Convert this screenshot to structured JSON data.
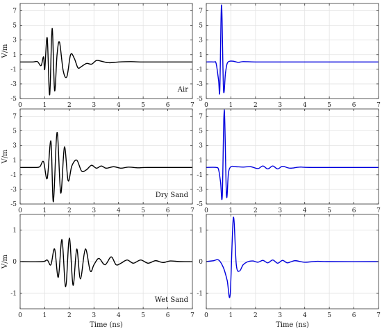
{
  "chart_data": [
    {
      "type": "line",
      "panel": "top-left",
      "label": "Air",
      "ylabel": "V/m",
      "xlabel": "",
      "xlim": [
        0,
        7
      ],
      "ylim": [
        -5,
        8
      ],
      "xticks": [
        0,
        1,
        2,
        3,
        4,
        5,
        6,
        7
      ],
      "yticks": [
        -5,
        -3,
        -1,
        1,
        3,
        5,
        7
      ],
      "grid": true,
      "color": "#000000",
      "series": [
        {
          "x": [
            0,
            0.5,
            0.7,
            0.85,
            0.95,
            1.0,
            1.1,
            1.2,
            1.3,
            1.4,
            1.5,
            1.6,
            1.75,
            1.9,
            2.05,
            2.2,
            2.35,
            2.5,
            2.7,
            2.9,
            3.1,
            3.3,
            3.6,
            4.0,
            4.5,
            5.0,
            7.0
          ],
          "y": [
            0,
            0,
            0.05,
            -0.5,
            0.7,
            -1.0,
            3.3,
            -4.5,
            4.6,
            -3.9,
            1.0,
            2.7,
            -1.2,
            -2.0,
            1.0,
            0.5,
            -0.8,
            -0.6,
            -0.2,
            -0.3,
            0.2,
            0.1,
            -0.1,
            0.0,
            0.05,
            0,
            0
          ]
        }
      ]
    },
    {
      "type": "line",
      "panel": "top-right",
      "label": "",
      "ylabel": "",
      "xlabel": "",
      "xlim": [
        0,
        7
      ],
      "ylim": [
        -5,
        8
      ],
      "xticks": [
        0,
        1,
        2,
        3,
        4,
        5,
        6,
        7
      ],
      "yticks": [
        -5,
        -3,
        -1,
        1,
        3,
        5,
        7
      ],
      "grid": true,
      "color": "#0000dd",
      "series": [
        {
          "x": [
            0,
            0.3,
            0.4,
            0.5,
            0.55,
            0.62,
            0.7,
            0.78,
            0.85,
            0.95,
            1.1,
            1.3,
            1.5,
            2.0,
            3.0,
            7.0
          ],
          "y": [
            0,
            0,
            -0.2,
            -2.5,
            -3.8,
            7.8,
            -3.8,
            -1.5,
            -0.2,
            0.1,
            0.1,
            -0.05,
            0.05,
            0,
            0,
            0
          ]
        }
      ]
    },
    {
      "type": "line",
      "panel": "middle-left",
      "label": "Dry Sand",
      "ylabel": "V/m",
      "xlabel": "",
      "xlim": [
        0,
        7
      ],
      "ylim": [
        -5,
        8
      ],
      "xticks": [
        0,
        1,
        2,
        3,
        4,
        5,
        6,
        7
      ],
      "yticks": [
        -5,
        -3,
        -1,
        1,
        3,
        5,
        7
      ],
      "grid": true,
      "color": "#000000",
      "series": [
        {
          "x": [
            0,
            0.6,
            0.8,
            0.95,
            1.1,
            1.25,
            1.35,
            1.5,
            1.65,
            1.8,
            1.95,
            2.1,
            2.3,
            2.5,
            2.7,
            2.9,
            3.1,
            3.3,
            3.5,
            3.8,
            4.1,
            4.4,
            4.8,
            5.2,
            7.0
          ],
          "y": [
            0,
            0,
            0.1,
            0.8,
            -1.5,
            3.6,
            -4.7,
            4.8,
            -3.5,
            2.8,
            -1.8,
            0.2,
            1.0,
            -0.5,
            -0.3,
            0.3,
            -0.1,
            0.2,
            -0.1,
            0.1,
            -0.1,
            0.05,
            -0.05,
            0,
            0
          ]
        }
      ]
    },
    {
      "type": "line",
      "panel": "middle-right",
      "label": "",
      "ylabel": "",
      "xlabel": "",
      "xlim": [
        0,
        7
      ],
      "ylim": [
        -5,
        8
      ],
      "xticks": [
        0,
        1,
        2,
        3,
        4,
        5,
        6,
        7
      ],
      "yticks": [
        -5,
        -3,
        -1,
        1,
        3,
        5,
        7
      ],
      "grid": true,
      "color": "#0000dd",
      "series": [
        {
          "x": [
            0,
            0.4,
            0.5,
            0.58,
            0.65,
            0.73,
            0.82,
            0.9,
            1.0,
            1.2,
            1.5,
            1.8,
            2.1,
            2.3,
            2.5,
            2.7,
            2.9,
            3.1,
            3.4,
            3.8,
            4.3,
            7.0
          ],
          "y": [
            0,
            0,
            -0.3,
            -2.0,
            -3.9,
            7.9,
            -3.8,
            -0.8,
            0.1,
            0.1,
            0.05,
            0.1,
            -0.15,
            0.2,
            -0.2,
            0.2,
            -0.2,
            0.15,
            -0.1,
            0.05,
            0,
            0
          ]
        }
      ]
    },
    {
      "type": "line",
      "panel": "bottom-left",
      "label": "Wet Sand",
      "ylabel": "V/m",
      "xlabel": "Time (ns)",
      "xlim": [
        0,
        7
      ],
      "ylim": [
        -1.5,
        1.5
      ],
      "xticks": [
        0,
        1,
        2,
        3,
        4,
        5,
        6,
        7
      ],
      "yticks": [
        -1,
        0,
        1
      ],
      "grid": true,
      "color": "#000000",
      "series": [
        {
          "x": [
            0,
            0.9,
            1.1,
            1.25,
            1.4,
            1.55,
            1.7,
            1.85,
            2.0,
            2.15,
            2.3,
            2.45,
            2.65,
            2.85,
            3.0,
            3.2,
            3.45,
            3.7,
            3.9,
            4.1,
            4.35,
            4.6,
            4.9,
            5.2,
            5.5,
            5.8,
            6.1,
            6.5,
            7.0
          ],
          "y": [
            0,
            0,
            0.05,
            -0.1,
            0.4,
            -0.5,
            0.7,
            -0.8,
            0.75,
            -0.75,
            0.4,
            -0.55,
            0.4,
            -0.3,
            -0.1,
            0.1,
            -0.1,
            0.15,
            -0.1,
            -0.05,
            0.05,
            -0.05,
            0.05,
            -0.05,
            0.03,
            -0.03,
            0.02,
            0,
            0
          ]
        }
      ]
    },
    {
      "type": "line",
      "panel": "bottom-right",
      "label": "",
      "ylabel": "",
      "xlabel": "Time (ns)",
      "xlim": [
        0,
        7
      ],
      "ylim": [
        -1.5,
        1.5
      ],
      "xticks": [
        0,
        1,
        2,
        3,
        4,
        5,
        6,
        7
      ],
      "yticks": [
        -1,
        0,
        1
      ],
      "grid": true,
      "color": "#0000dd",
      "series": [
        {
          "x": [
            0,
            0.3,
            0.5,
            0.7,
            0.85,
            0.97,
            1.1,
            1.22,
            1.35,
            1.5,
            1.7,
            1.9,
            2.1,
            2.3,
            2.5,
            2.7,
            2.9,
            3.1,
            3.3,
            3.6,
            4.0,
            4.5,
            5.0,
            7.0
          ],
          "y": [
            0,
            0.03,
            0.05,
            -0.2,
            -0.6,
            -1.05,
            1.4,
            -0.1,
            -0.3,
            -0.1,
            0,
            0.02,
            -0.02,
            0.04,
            -0.04,
            0.05,
            -0.05,
            0.04,
            -0.04,
            0.03,
            -0.02,
            0.01,
            0,
            0
          ]
        }
      ]
    }
  ]
}
